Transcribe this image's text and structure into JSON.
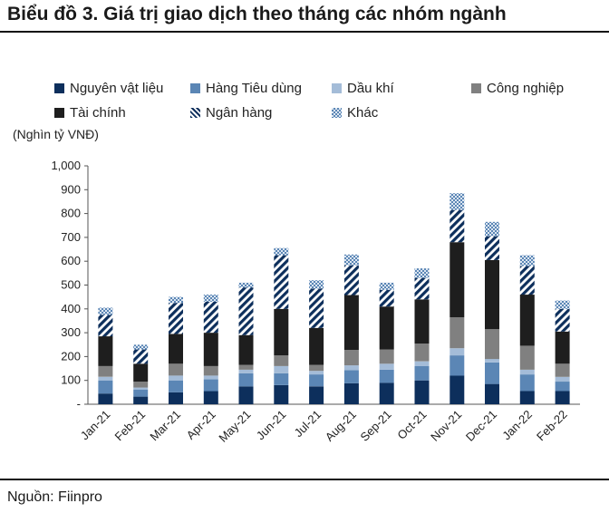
{
  "title": "Biểu đồ 3. Giá trị giao dịch theo tháng các nhóm ngành",
  "source": "Nguồn: Fiinpro",
  "chart_data": {
    "type": "bar",
    "stacked": true,
    "unit_label": "(Nghìn tỷ VNĐ)",
    "ylim": [
      0,
      1000
    ],
    "yticks": [
      "-",
      "100",
      "200",
      "300",
      "400",
      "500",
      "600",
      "700",
      "800",
      "900",
      "1,000"
    ],
    "legend_position": "top",
    "categories": [
      "Jan-21",
      "Feb-21",
      "Mar-21",
      "Apr-21",
      "May-21",
      "Jun-21",
      "Jul-21",
      "Aug-21",
      "Sep-21",
      "Oct-21",
      "Nov-21",
      "Dec-21",
      "Jan-22",
      "Feb-22"
    ],
    "series": [
      {
        "name": "Nguyên vật liệu",
        "color": "#0d2f5c",
        "pattern": "solid",
        "values": [
          45,
          32,
          50,
          55,
          75,
          80,
          75,
          88,
          90,
          100,
          120,
          85,
          55,
          55
        ]
      },
      {
        "name": "Hàng Tiêu dùng",
        "color": "#5b86b5",
        "pattern": "solid",
        "values": [
          55,
          30,
          50,
          50,
          55,
          50,
          50,
          55,
          55,
          60,
          85,
          90,
          70,
          40
        ]
      },
      {
        "name": "Dầu khí",
        "color": "#a4bcd8",
        "pattern": "solid",
        "values": [
          15,
          8,
          20,
          15,
          15,
          30,
          15,
          20,
          25,
          20,
          30,
          15,
          20,
          20
        ]
      },
      {
        "name": "Công nghiệp",
        "color": "#808080",
        "pattern": "solid",
        "values": [
          45,
          25,
          50,
          40,
          20,
          45,
          25,
          65,
          60,
          75,
          130,
          125,
          100,
          55
        ]
      },
      {
        "name": "Tài chính",
        "color": "#1e1e1e",
        "pattern": "solid",
        "values": [
          125,
          75,
          125,
          140,
          125,
          195,
          155,
          230,
          180,
          185,
          315,
          290,
          215,
          135
        ]
      },
      {
        "name": "Ngân hàng",
        "color": "#0d2f5c",
        "pattern": "diagonal",
        "values": [
          90,
          60,
          130,
          130,
          200,
          225,
          165,
          125,
          70,
          90,
          135,
          100,
          120,
          95
        ]
      },
      {
        "name": "Khác",
        "color": "#5b86b5",
        "pattern": "checker",
        "values": [
          30,
          20,
          25,
          30,
          20,
          30,
          35,
          45,
          30,
          40,
          70,
          60,
          45,
          35
        ]
      }
    ]
  }
}
